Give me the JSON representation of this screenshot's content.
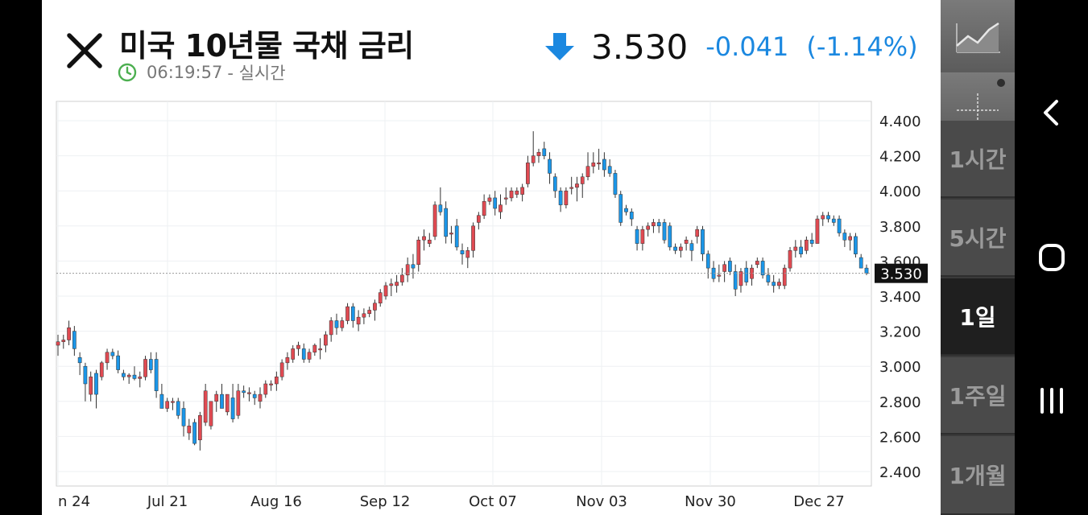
{
  "header": {
    "title": "미국 10년물 국채 금리",
    "time": "06:19:57",
    "status": "- 실시간",
    "direction": "down",
    "price": "3.530",
    "change": "-0.041",
    "change_pct": "(-1.14%)"
  },
  "colors": {
    "up": "#e04a52",
    "down": "#1b96e8",
    "change": "#1b88e0",
    "time_icon": "#4caf50"
  },
  "period_buttons": [
    {
      "label": "1시간",
      "active": false
    },
    {
      "label": "5시간",
      "active": false
    },
    {
      "label": "1일",
      "active": true
    },
    {
      "label": "1주일",
      "active": false
    },
    {
      "label": "1개월",
      "active": false
    }
  ],
  "tool_buttons": [
    {
      "icon": "line-chart-icon"
    },
    {
      "icon": "crosshair-icon"
    }
  ],
  "nav_icons": [
    "back-icon",
    "home-icon",
    "recents-icon"
  ],
  "chart_data": {
    "type": "candlestick",
    "x_labels": [
      "n 24",
      "Jul 21",
      "Aug 16",
      "Sep 12",
      "Oct 07",
      "Nov 03",
      "Nov 30",
      "Dec 27"
    ],
    "y_ticks": [
      "4.400",
      "4.200",
      "4.000",
      "3.800",
      "3.600",
      "3.400",
      "3.200",
      "3.000",
      "2.800",
      "2.600",
      "2.400"
    ],
    "ylim": [
      2.4,
      4.4
    ],
    "current_value": 3.53,
    "current_label": "3.530",
    "grid": true,
    "candles": [
      [
        3.12,
        3.18,
        3.06,
        3.14
      ],
      [
        3.14,
        3.18,
        3.1,
        3.15
      ],
      [
        3.15,
        3.26,
        3.12,
        3.22
      ],
      [
        3.2,
        3.23,
        3.06,
        3.1
      ],
      [
        3.05,
        3.08,
        2.95,
        3.02
      ],
      [
        3.0,
        3.02,
        2.8,
        2.9
      ],
      [
        2.84,
        2.97,
        2.8,
        2.94
      ],
      [
        2.96,
        2.98,
        2.76,
        2.84
      ],
      [
        2.94,
        3.03,
        2.92,
        3.02
      ],
      [
        3.02,
        3.1,
        2.98,
        3.08
      ],
      [
        3.08,
        3.1,
        3.04,
        3.06
      ],
      [
        3.06,
        3.09,
        2.96,
        2.98
      ],
      [
        2.96,
        2.98,
        2.92,
        2.94
      ],
      [
        2.94,
        2.96,
        2.9,
        2.95
      ],
      [
        2.95,
        3.0,
        2.92,
        2.93
      ],
      [
        2.93,
        2.97,
        2.88,
        2.94
      ],
      [
        2.94,
        3.06,
        2.92,
        3.04
      ],
      [
        3.04,
        3.08,
        2.96,
        2.98
      ],
      [
        3.04,
        3.08,
        2.82,
        2.86
      ],
      [
        2.84,
        2.9,
        2.76,
        2.76
      ],
      [
        2.76,
        2.82,
        2.74,
        2.8
      ],
      [
        2.8,
        2.82,
        2.75,
        2.8
      ],
      [
        2.8,
        2.82,
        2.7,
        2.72
      ],
      [
        2.76,
        2.8,
        2.6,
        2.66
      ],
      [
        2.62,
        2.7,
        2.58,
        2.66
      ],
      [
        2.68,
        2.7,
        2.55,
        2.56
      ],
      [
        2.58,
        2.74,
        2.52,
        2.72
      ],
      [
        2.68,
        2.9,
        2.66,
        2.86
      ],
      [
        2.66,
        2.8,
        2.64,
        2.8
      ],
      [
        2.8,
        2.86,
        2.74,
        2.84
      ],
      [
        2.84,
        2.9,
        2.76,
        2.76
      ],
      [
        2.74,
        2.84,
        2.72,
        2.84
      ],
      [
        2.82,
        2.9,
        2.68,
        2.7
      ],
      [
        2.72,
        2.9,
        2.7,
        2.86
      ],
      [
        2.86,
        2.89,
        2.82,
        2.85
      ],
      [
        2.85,
        2.88,
        2.8,
        2.85
      ],
      [
        2.84,
        2.86,
        2.78,
        2.82
      ],
      [
        2.8,
        2.88,
        2.76,
        2.84
      ],
      [
        2.84,
        2.92,
        2.82,
        2.9
      ],
      [
        2.9,
        2.92,
        2.86,
        2.9
      ],
      [
        2.9,
        2.97,
        2.86,
        2.94
      ],
      [
        2.94,
        3.04,
        2.92,
        3.02
      ],
      [
        3.02,
        3.08,
        2.98,
        3.05
      ],
      [
        3.04,
        3.12,
        3.02,
        3.1
      ],
      [
        3.1,
        3.14,
        3.06,
        3.12
      ],
      [
        3.1,
        3.13,
        3.02,
        3.04
      ],
      [
        3.04,
        3.1,
        3.02,
        3.08
      ],
      [
        3.08,
        3.13,
        3.06,
        3.12
      ],
      [
        3.1,
        3.16,
        3.04,
        3.1
      ],
      [
        3.12,
        3.2,
        3.08,
        3.18
      ],
      [
        3.18,
        3.28,
        3.14,
        3.26
      ],
      [
        3.26,
        3.3,
        3.18,
        3.22
      ],
      [
        3.22,
        3.28,
        3.2,
        3.26
      ],
      [
        3.26,
        3.36,
        3.24,
        3.34
      ],
      [
        3.34,
        3.36,
        3.22,
        3.26
      ],
      [
        3.24,
        3.32,
        3.2,
        3.28
      ],
      [
        3.28,
        3.33,
        3.24,
        3.3
      ],
      [
        3.3,
        3.34,
        3.28,
        3.32
      ],
      [
        3.32,
        3.38,
        3.26,
        3.36
      ],
      [
        3.36,
        3.44,
        3.34,
        3.42
      ],
      [
        3.4,
        3.48,
        3.38,
        3.46
      ],
      [
        3.46,
        3.5,
        3.4,
        3.47
      ],
      [
        3.46,
        3.52,
        3.42,
        3.48
      ],
      [
        3.48,
        3.56,
        3.46,
        3.52
      ],
      [
        3.52,
        3.62,
        3.48,
        3.58
      ],
      [
        3.58,
        3.64,
        3.5,
        3.56
      ],
      [
        3.58,
        3.74,
        3.54,
        3.72
      ],
      [
        3.72,
        3.78,
        3.66,
        3.74
      ],
      [
        3.7,
        3.76,
        3.68,
        3.72
      ],
      [
        3.74,
        3.94,
        3.72,
        3.92
      ],
      [
        3.92,
        4.02,
        3.86,
        3.88
      ],
      [
        3.9,
        3.94,
        3.7,
        3.74
      ],
      [
        3.76,
        3.8,
        3.7,
        3.76
      ],
      [
        3.8,
        3.84,
        3.66,
        3.68
      ],
      [
        3.66,
        3.7,
        3.58,
        3.64
      ],
      [
        3.62,
        3.68,
        3.56,
        3.66
      ],
      [
        3.66,
        3.82,
        3.62,
        3.8
      ],
      [
        3.82,
        3.88,
        3.78,
        3.86
      ],
      [
        3.86,
        3.98,
        3.84,
        3.94
      ],
      [
        3.94,
        3.98,
        3.92,
        3.96
      ],
      [
        3.96,
        4.0,
        3.86,
        3.9
      ],
      [
        3.88,
        3.98,
        3.84,
        3.92
      ],
      [
        3.96,
        4.02,
        3.92,
        3.96
      ],
      [
        3.96,
        4.02,
        3.94,
        4.0
      ],
      [
        3.98,
        4.02,
        3.96,
        4.0
      ],
      [
        3.98,
        4.04,
        3.94,
        4.02
      ],
      [
        4.04,
        4.2,
        4.02,
        4.16
      ],
      [
        4.16,
        4.34,
        4.14,
        4.2
      ],
      [
        4.2,
        4.24,
        4.16,
        4.22
      ],
      [
        4.24,
        4.28,
        4.18,
        4.2
      ],
      [
        4.18,
        4.22,
        4.04,
        4.1
      ],
      [
        4.08,
        4.1,
        3.96,
        4.0
      ],
      [
        4.0,
        4.02,
        3.88,
        3.92
      ],
      [
        3.92,
        4.02,
        3.9,
        4.0
      ],
      [
        4.02,
        4.08,
        3.98,
        4.02
      ],
      [
        4.02,
        4.08,
        3.94,
        4.04
      ],
      [
        4.04,
        4.1,
        3.96,
        4.08
      ],
      [
        4.08,
        4.22,
        4.06,
        4.14
      ],
      [
        4.14,
        4.22,
        4.1,
        4.16
      ],
      [
        4.16,
        4.24,
        4.12,
        4.16
      ],
      [
        4.18,
        4.22,
        4.08,
        4.12
      ],
      [
        4.14,
        4.18,
        4.08,
        4.1
      ],
      [
        4.1,
        4.12,
        3.96,
        3.98
      ],
      [
        3.98,
        4.0,
        3.8,
        3.82
      ],
      [
        3.9,
        3.92,
        3.86,
        3.88
      ],
      [
        3.88,
        3.9,
        3.8,
        3.84
      ],
      [
        3.78,
        3.8,
        3.66,
        3.7
      ],
      [
        3.7,
        3.8,
        3.66,
        3.78
      ],
      [
        3.78,
        3.82,
        3.74,
        3.8
      ],
      [
        3.8,
        3.84,
        3.76,
        3.82
      ],
      [
        3.82,
        3.84,
        3.76,
        3.8
      ],
      [
        3.82,
        3.84,
        3.7,
        3.72
      ],
      [
        3.8,
        3.82,
        3.66,
        3.68
      ],
      [
        3.68,
        3.7,
        3.64,
        3.66
      ],
      [
        3.66,
        3.7,
        3.62,
        3.68
      ],
      [
        3.7,
        3.74,
        3.66,
        3.72
      ],
      [
        3.7,
        3.72,
        3.6,
        3.66
      ],
      [
        3.74,
        3.8,
        3.7,
        3.78
      ],
      [
        3.78,
        3.8,
        3.6,
        3.64
      ],
      [
        3.64,
        3.66,
        3.5,
        3.56
      ],
      [
        3.56,
        3.6,
        3.48,
        3.5
      ],
      [
        3.52,
        3.58,
        3.48,
        3.52
      ],
      [
        3.54,
        3.6,
        3.48,
        3.58
      ],
      [
        3.6,
        3.62,
        3.52,
        3.54
      ],
      [
        3.54,
        3.58,
        3.4,
        3.44
      ],
      [
        3.46,
        3.56,
        3.42,
        3.54
      ],
      [
        3.56,
        3.6,
        3.46,
        3.48
      ],
      [
        3.5,
        3.58,
        3.46,
        3.56
      ],
      [
        3.58,
        3.62,
        3.56,
        3.6
      ],
      [
        3.6,
        3.62,
        3.5,
        3.52
      ],
      [
        3.52,
        3.56,
        3.46,
        3.48
      ],
      [
        3.48,
        3.52,
        3.42,
        3.46
      ],
      [
        3.46,
        3.5,
        3.44,
        3.48
      ],
      [
        3.46,
        3.58,
        3.44,
        3.56
      ],
      [
        3.56,
        3.68,
        3.54,
        3.66
      ],
      [
        3.66,
        3.72,
        3.62,
        3.68
      ],
      [
        3.68,
        3.72,
        3.62,
        3.64
      ],
      [
        3.66,
        3.74,
        3.64,
        3.72
      ],
      [
        3.72,
        3.76,
        3.68,
        3.7
      ],
      [
        3.7,
        3.86,
        3.7,
        3.84
      ],
      [
        3.84,
        3.88,
        3.8,
        3.86
      ],
      [
        3.86,
        3.88,
        3.82,
        3.84
      ],
      [
        3.84,
        3.86,
        3.8,
        3.82
      ],
      [
        3.84,
        3.86,
        3.74,
        3.76
      ],
      [
        3.76,
        3.78,
        3.68,
        3.72
      ],
      [
        3.72,
        3.76,
        3.66,
        3.74
      ],
      [
        3.74,
        3.76,
        3.62,
        3.64
      ],
      [
        3.62,
        3.64,
        3.56,
        3.56
      ],
      [
        3.56,
        3.58,
        3.52,
        3.53
      ]
    ]
  }
}
